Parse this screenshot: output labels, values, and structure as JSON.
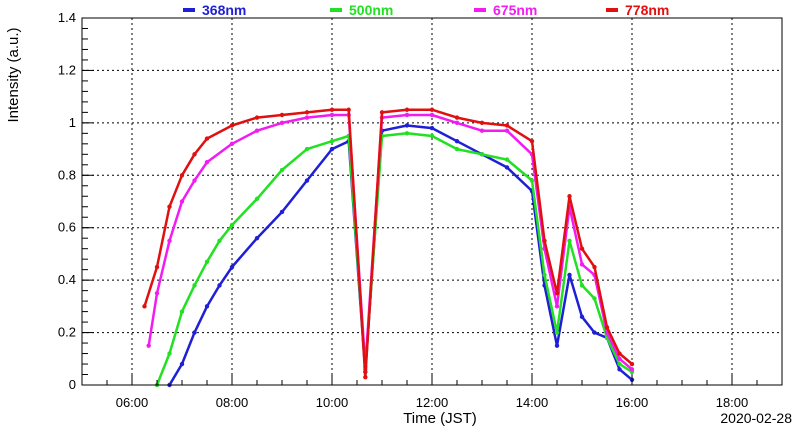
{
  "chart_data": {
    "type": "scatter",
    "title": "",
    "xlabel": "Time (JST)",
    "ylabel": "Intensity (a.u.)",
    "date_label": "2020-02-28",
    "xlim": [
      "05:00",
      "19:00"
    ],
    "ylim": [
      0,
      1.4
    ],
    "x_ticks": [
      "06:00",
      "08:00",
      "10:00",
      "12:00",
      "14:00",
      "16:00",
      "18:00"
    ],
    "y_ticks": [
      "0",
      "0.2",
      "0.4",
      "0.6",
      "0.8",
      "1",
      "1.2",
      "1.4"
    ],
    "grid": true,
    "legend_position": "top",
    "series": [
      {
        "name": "368nm",
        "color": "#1f1fd6",
        "points": [
          [
            "06:45",
            0.0
          ],
          [
            "07:00",
            0.08
          ],
          [
            "07:15",
            0.2
          ],
          [
            "07:30",
            0.3
          ],
          [
            "07:45",
            0.38
          ],
          [
            "08:00",
            0.45
          ],
          [
            "08:30",
            0.56
          ],
          [
            "09:00",
            0.66
          ],
          [
            "09:30",
            0.78
          ],
          [
            "10:00",
            0.9
          ],
          [
            "10:20",
            0.93
          ],
          [
            "10:40",
            0.05
          ],
          [
            "11:00",
            0.97
          ],
          [
            "11:30",
            0.99
          ],
          [
            "12:00",
            0.98
          ],
          [
            "12:30",
            0.93
          ],
          [
            "13:00",
            0.88
          ],
          [
            "13:30",
            0.83
          ],
          [
            "14:00",
            0.74
          ],
          [
            "14:15",
            0.38
          ],
          [
            "14:30",
            0.15
          ],
          [
            "14:45",
            0.42
          ],
          [
            "15:00",
            0.26
          ],
          [
            "15:15",
            0.2
          ],
          [
            "15:30",
            0.18
          ],
          [
            "15:45",
            0.06
          ],
          [
            "16:00",
            0.02
          ]
        ]
      },
      {
        "name": "500nm",
        "color": "#22e022",
        "points": [
          [
            "06:30",
            0.0
          ],
          [
            "06:45",
            0.12
          ],
          [
            "07:00",
            0.28
          ],
          [
            "07:15",
            0.38
          ],
          [
            "07:30",
            0.47
          ],
          [
            "07:45",
            0.55
          ],
          [
            "08:00",
            0.61
          ],
          [
            "08:30",
            0.71
          ],
          [
            "09:00",
            0.82
          ],
          [
            "09:30",
            0.9
          ],
          [
            "10:00",
            0.93
          ],
          [
            "10:20",
            0.95
          ],
          [
            "10:40",
            0.06
          ],
          [
            "11:00",
            0.95
          ],
          [
            "11:30",
            0.96
          ],
          [
            "12:00",
            0.95
          ],
          [
            "12:30",
            0.9
          ],
          [
            "13:00",
            0.88
          ],
          [
            "13:30",
            0.86
          ],
          [
            "14:00",
            0.78
          ],
          [
            "14:15",
            0.42
          ],
          [
            "14:30",
            0.2
          ],
          [
            "14:45",
            0.55
          ],
          [
            "15:00",
            0.38
          ],
          [
            "15:15",
            0.33
          ],
          [
            "15:30",
            0.18
          ],
          [
            "15:45",
            0.08
          ],
          [
            "16:00",
            0.05
          ]
        ]
      },
      {
        "name": "675nm",
        "color": "#f21cf2",
        "points": [
          [
            "06:20",
            0.15
          ],
          [
            "06:30",
            0.35
          ],
          [
            "06:45",
            0.55
          ],
          [
            "07:00",
            0.7
          ],
          [
            "07:15",
            0.78
          ],
          [
            "07:30",
            0.85
          ],
          [
            "08:00",
            0.92
          ],
          [
            "08:30",
            0.97
          ],
          [
            "09:00",
            1.0
          ],
          [
            "09:30",
            1.02
          ],
          [
            "10:00",
            1.03
          ],
          [
            "10:20",
            1.03
          ],
          [
            "10:40",
            0.07
          ],
          [
            "11:00",
            1.02
          ],
          [
            "11:30",
            1.03
          ],
          [
            "12:00",
            1.03
          ],
          [
            "12:30",
            1.0
          ],
          [
            "13:00",
            0.97
          ],
          [
            "13:30",
            0.97
          ],
          [
            "14:00",
            0.88
          ],
          [
            "14:15",
            0.52
          ],
          [
            "14:30",
            0.3
          ],
          [
            "14:45",
            0.68
          ],
          [
            "15:00",
            0.46
          ],
          [
            "15:15",
            0.42
          ],
          [
            "15:30",
            0.2
          ],
          [
            "15:45",
            0.1
          ],
          [
            "16:00",
            0.06
          ]
        ]
      },
      {
        "name": "778nm",
        "color": "#e01010",
        "points": [
          [
            "06:15",
            0.3
          ],
          [
            "06:30",
            0.45
          ],
          [
            "06:45",
            0.68
          ],
          [
            "07:00",
            0.8
          ],
          [
            "07:15",
            0.88
          ],
          [
            "07:30",
            0.94
          ],
          [
            "08:00",
            0.99
          ],
          [
            "08:30",
            1.02
          ],
          [
            "09:00",
            1.03
          ],
          [
            "09:30",
            1.04
          ],
          [
            "10:00",
            1.05
          ],
          [
            "10:20",
            1.05
          ],
          [
            "10:40",
            0.03
          ],
          [
            "11:00",
            1.04
          ],
          [
            "11:30",
            1.05
          ],
          [
            "12:00",
            1.05
          ],
          [
            "12:30",
            1.02
          ],
          [
            "13:00",
            1.0
          ],
          [
            "13:30",
            0.99
          ],
          [
            "14:00",
            0.93
          ],
          [
            "14:15",
            0.55
          ],
          [
            "14:30",
            0.35
          ],
          [
            "14:45",
            0.72
          ],
          [
            "15:00",
            0.52
          ],
          [
            "15:15",
            0.45
          ],
          [
            "15:30",
            0.22
          ],
          [
            "15:45",
            0.12
          ],
          [
            "16:00",
            0.08
          ]
        ]
      }
    ]
  }
}
